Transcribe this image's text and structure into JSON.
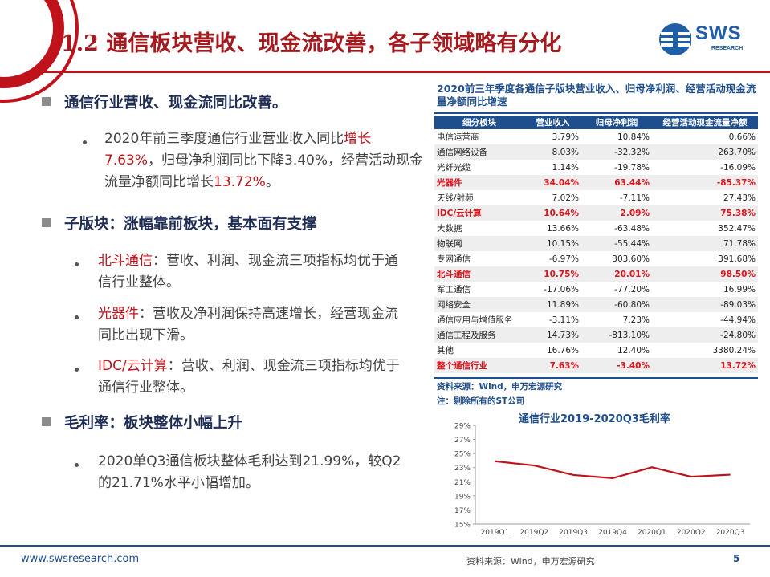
{
  "header": {
    "title": "1.2 通信板块营收、现金流改善，各子领域略有分化",
    "logo_text": "SWS",
    "logo_sub": "RESEARCH",
    "accent": "#c0121b",
    "brand": "#1f4e8c"
  },
  "left": {
    "s1_heading": "通信行业营收、现金流同比改善。",
    "s1_p1_a": "2020年前三季度通信行业营业收入",
    "s1_p1_b": "同比",
    "s1_p1_c": "增长",
    "s1_p1_d": "7.63%",
    "s1_p1_e": "，归母净利润同比下降3.40%，经营活动现金流量净额同比增长",
    "s1_p1_f": "13.72%",
    "s1_p1_g": "。",
    "s2_heading": "子版块：涨幅靠前板块，基本面有支撑",
    "b1_label": "北斗通信",
    "b1_text": "：营收、利润、现金流三项指标均优于通信行业整体。",
    "b2_label": "光器件",
    "b2_text": "：营收及净利润保持高速增长，经营现金流同比出现下滑。",
    "b3_label": "IDC/云计算",
    "b3_text": "：营收、利润、现金流三项指标均优于通信行业整体。",
    "s3_heading": "毛利率：板块整体小幅上升",
    "s3_p": "2020单Q3通信板块整体毛利达到21.99%，较Q2的21.71%水平小幅增加。"
  },
  "table": {
    "title": "2020前三年季度各通信子版块营业收入、归母净利润、经营活动现金流量净额同比增速",
    "headers": [
      "细分板块",
      "营业收入",
      "归母净利润",
      "经营活动现金流量净额"
    ],
    "rows": [
      {
        "c0": "电信运营商",
        "c1": "3.79%",
        "c2": "10.84%",
        "c3": "0.66%"
      },
      {
        "c0": "通信网络设备",
        "c1": "8.03%",
        "c2": "-32.32%",
        "c3": "263.70%"
      },
      {
        "c0": "光纤光缆",
        "c1": "1.14%",
        "c2": "-19.78%",
        "c3": "-16.09%"
      },
      {
        "c0": "光器件",
        "c1": "34.04%",
        "c2": "63.44%",
        "c3": "-85.37%"
      },
      {
        "c0": "天线/射频",
        "c1": "7.02%",
        "c2": "-7.11%",
        "c3": "27.43%"
      },
      {
        "c0": "IDC/云计算",
        "c1": "10.64%",
        "c2": "2.09%",
        "c3": "75.38%"
      },
      {
        "c0": "大数据",
        "c1": "13.66%",
        "c2": "-63.48%",
        "c3": "352.47%"
      },
      {
        "c0": "物联网",
        "c1": "10.15%",
        "c2": "-55.44%",
        "c3": "71.78%"
      },
      {
        "c0": "专网通信",
        "c1": "-6.97%",
        "c2": "303.60%",
        "c3": "391.68%"
      },
      {
        "c0": "北斗通信",
        "c1": "10.75%",
        "c2": "20.01%",
        "c3": "98.50%"
      },
      {
        "c0": "军工通信",
        "c1": "-17.06%",
        "c2": "-77.20%",
        "c3": "16.99%"
      },
      {
        "c0": "网络安全",
        "c1": "11.89%",
        "c2": "-60.80%",
        "c3": "-89.03%"
      },
      {
        "c0": "通信应用与增值服务",
        "c1": "-3.11%",
        "c2": "7.23%",
        "c3": "-44.94%"
      },
      {
        "c0": "通信工程及服务",
        "c1": "14.73%",
        "c2": "-813.10%",
        "c3": "-24.80%"
      },
      {
        "c0": "其他",
        "c1": "16.76%",
        "c2": "12.40%",
        "c3": "3380.24%"
      },
      {
        "c0": "整个通信行业",
        "c1": "7.63%",
        "c2": "-3.40%",
        "c3": "13.72%"
      }
    ],
    "source": "资料来源：Wind，申万宏源研究",
    "note": "注：剔除所有的ST公司"
  },
  "chart_data": {
    "type": "line",
    "title": "通信行业2019-2020Q3毛利率",
    "categories": [
      "2019Q1",
      "2019Q2",
      "2019Q3",
      "2019Q4",
      "2020Q1",
      "2020Q2",
      "2020Q3"
    ],
    "series": [
      {
        "values": [
          23.9,
          23.3,
          21.95,
          21.5,
          23.05,
          21.71,
          21.99
        ],
        "color": "#c0121b"
      }
    ],
    "ylim": [
      15,
      29
    ],
    "yticks": [
      "29%",
      "27%",
      "25%",
      "23%",
      "21%",
      "19%",
      "17%",
      "15%"
    ],
    "grid": false
  },
  "footer": {
    "url": "www.swsresearch.com",
    "source": "资料来源：Wind，申万宏源研究",
    "page": "5"
  }
}
